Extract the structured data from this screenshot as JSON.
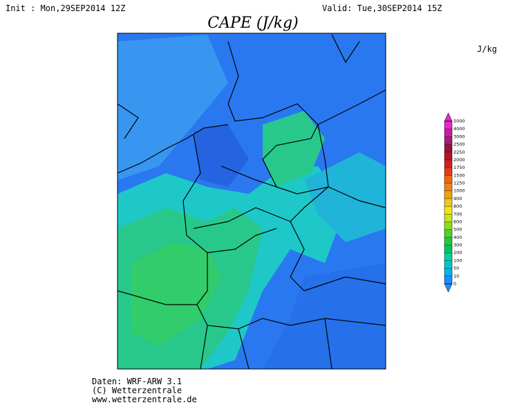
{
  "header": {
    "init": "Init : Mon,29SEP2014 12Z",
    "valid": "Valid: Tue,30SEP2014 15Z",
    "title": "CAPE (J/kg)"
  },
  "legend": {
    "unit": "J/kg",
    "levels": [
      0,
      10,
      50,
      100,
      200,
      300,
      400,
      500,
      600,
      700,
      800,
      900,
      1000,
      1250,
      1500,
      1750,
      2000,
      2250,
      2500,
      3000,
      4000,
      5000
    ],
    "colors": [
      "#1e90ff",
      "#00b4f0",
      "#00c8c8",
      "#00d2a0",
      "#00c864",
      "#28c83c",
      "#50d228",
      "#8cdc1e",
      "#c8e614",
      "#f0e614",
      "#f0c814",
      "#f0a014",
      "#f08214",
      "#f06414",
      "#e63c14",
      "#d21e1e",
      "#b41428",
      "#96143c",
      "#a01e78",
      "#c81ea0",
      "#e628c8"
    ]
  },
  "footer": [
    "Daten: WRF-ARW 3.1",
    "(C) Wetterzentrale",
    "www.wetterzentrale.de"
  ]
}
